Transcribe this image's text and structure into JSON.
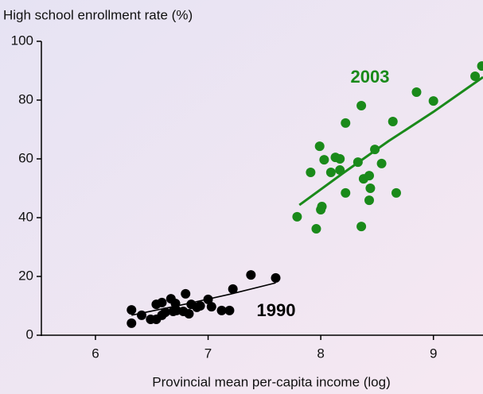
{
  "chart_data": {
    "type": "scatter",
    "ylabel": "High school enrollment rate (%)",
    "xlabel": "Provincial mean per-capita income (log)",
    "xlim": [
      5.52,
      9.44
    ],
    "ylim": [
      0,
      100
    ],
    "xticks": [
      6,
      7,
      8,
      9
    ],
    "yticks": [
      0,
      20,
      40,
      60,
      80,
      100
    ],
    "grid": false,
    "series": [
      {
        "name": "2003",
        "color": "#1a8a1a",
        "x": [
          7.79,
          7.96,
          8.0,
          8.01,
          7.91,
          7.99,
          8.03,
          8.09,
          8.13,
          8.17,
          8.17,
          8.22,
          8.22,
          8.33,
          8.36,
          8.36,
          8.38,
          8.43,
          8.44,
          8.43,
          8.48,
          8.54,
          8.64,
          8.67,
          8.85,
          9.0,
          9.37,
          9.43
        ],
        "y": [
          40.3,
          36.2,
          42.7,
          43.8,
          55.4,
          64.3,
          59.7,
          55.4,
          60.5,
          60,
          56.2,
          72.2,
          48.4,
          58.9,
          78.1,
          37,
          53.2,
          54.3,
          50,
          45.9,
          63.2,
          58.4,
          72.7,
          48.4,
          82.7,
          79.7,
          88.1,
          91.6
        ],
        "fit": {
          "x": [
            7.81,
            8.2,
            8.6,
            9.0,
            9.44
          ],
          "y": [
            44.3,
            55.2,
            66.0,
            76.0,
            87.8
          ]
        }
      },
      {
        "name": "1990",
        "color": "#000000",
        "x": [
          6.32,
          6.32,
          6.41,
          6.49,
          6.54,
          6.54,
          6.59,
          6.59,
          6.62,
          6.67,
          6.69,
          6.71,
          6.72,
          6.78,
          6.8,
          6.83,
          6.85,
          6.9,
          6.93,
          7.0,
          7.03,
          7.12,
          7.19,
          7.22,
          7.38,
          7.6
        ],
        "y": [
          8.6,
          4.1,
          6.8,
          5.4,
          5.4,
          10.5,
          11.1,
          6.8,
          7.8,
          12.4,
          8.1,
          10.8,
          8.4,
          8.1,
          14.1,
          7.3,
          10.5,
          9.5,
          10,
          12.2,
          9.7,
          8.4,
          8.4,
          15.7,
          20.5,
          19.5
        ],
        "fit": {
          "x": [
            6.32,
            6.8,
            7.2,
            7.6
          ],
          "y": [
            6.8,
            10.6,
            14.0,
            17.8
          ]
        }
      }
    ]
  }
}
